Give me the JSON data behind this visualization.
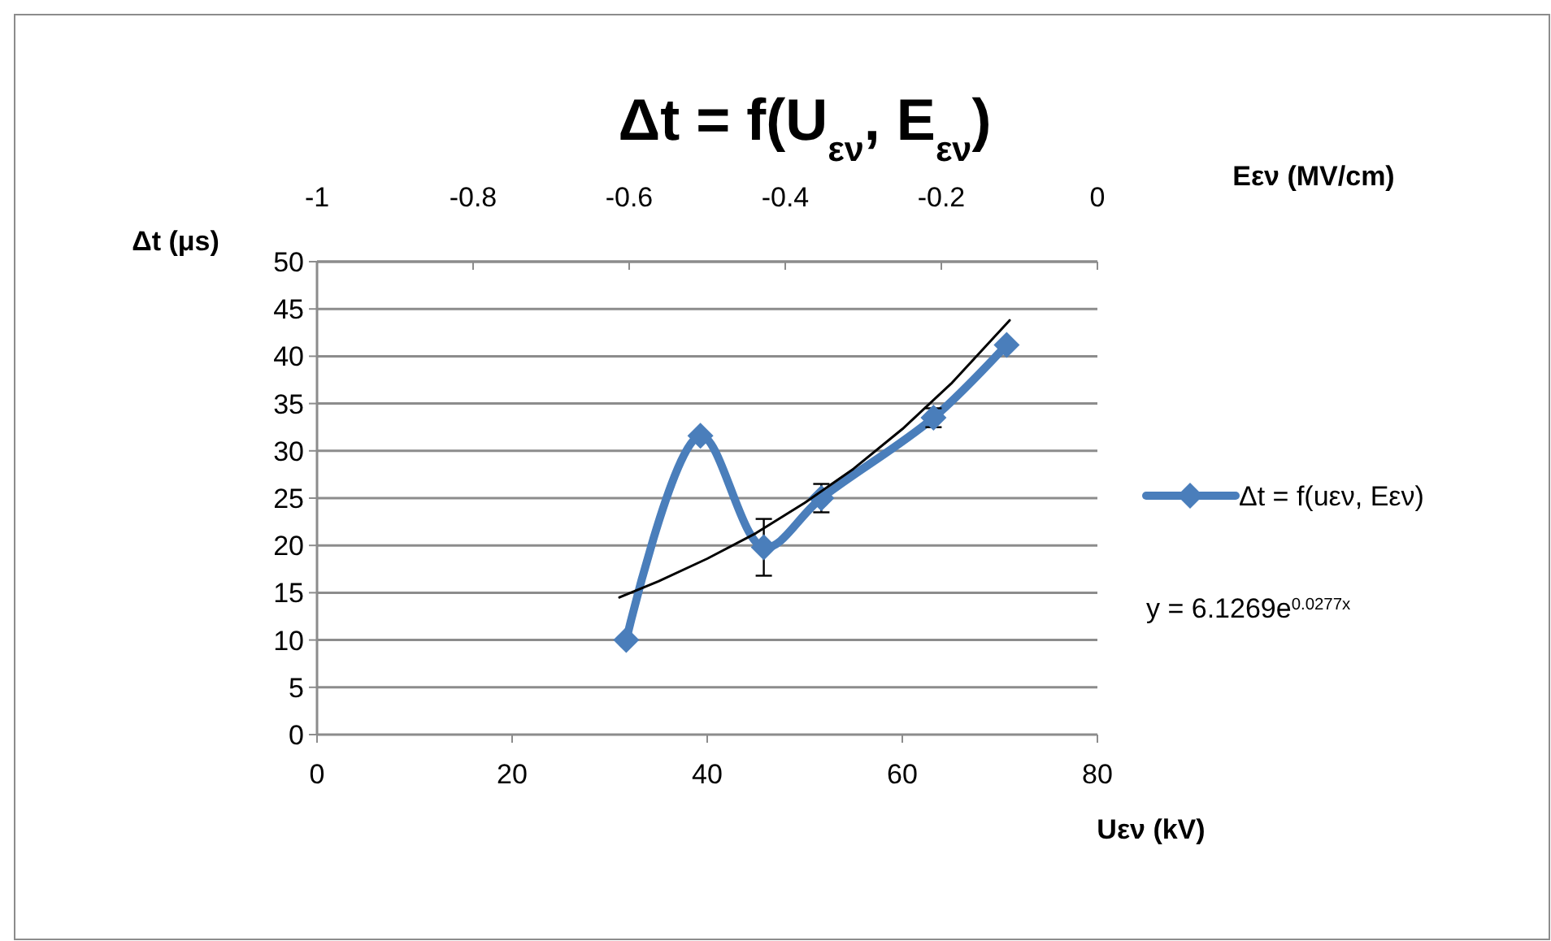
{
  "chart_data": {
    "type": "line",
    "title": "Δt = f(U$_{εν}$, E$_{εν}$)",
    "xlabel": "Uεν (kV)",
    "ylabel": "Δt (μs)",
    "x2label": "Eεν (MV/cm)",
    "xlim": [
      0,
      80
    ],
    "xticks": [
      0,
      20,
      40,
      60,
      80
    ],
    "ylim": [
      0,
      50
    ],
    "yticks": [
      0,
      5,
      10,
      15,
      20,
      25,
      30,
      35,
      40,
      45,
      50
    ],
    "x2lim": [
      -1,
      0
    ],
    "x2ticks": [
      -1,
      -0.8,
      -0.6,
      -0.4,
      -0.2,
      0
    ],
    "grid": "y",
    "legend": "right",
    "marker": "diamond",
    "line_style": "solid",
    "series": [
      {
        "name": "Δt = f(uεν, Eεν)",
        "color": "#4a7ebb",
        "x": [
          31.7,
          39.3,
          45.8,
          51.7,
          63.2,
          70.7
        ],
        "values": [
          10,
          31.6,
          19.8,
          25,
          33.5,
          41.2
        ],
        "errors": [
          null,
          null,
          3,
          1.5,
          1,
          null
        ]
      },
      {
        "type": "line",
        "color": "#000000",
        "marker": "none",
        "x": [
          31,
          35,
          40,
          45,
          50,
          55,
          60,
          65,
          71
        ],
        "values": [
          14.5,
          16.2,
          18.6,
          21.3,
          24.5,
          28.1,
          32.3,
          37.1,
          43.8
        ]
      }
    ],
    "annotations": [
      "y = 6.1269e$^{0.0277x}$"
    ]
  }
}
